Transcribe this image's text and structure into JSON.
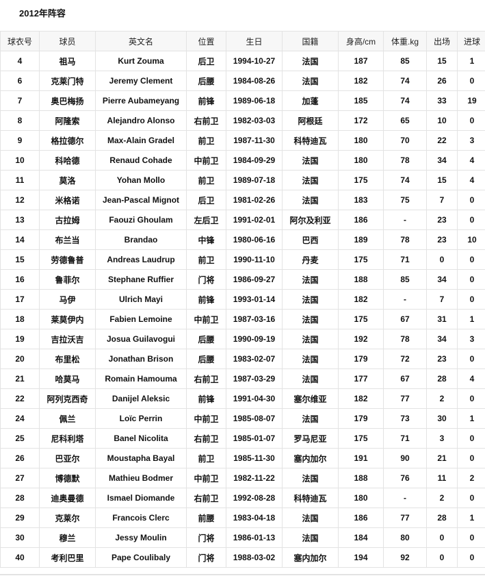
{
  "title": "2012年阵容",
  "columns": [
    "球衣号",
    "球员",
    "英文名",
    "位置",
    "生日",
    "国籍",
    "身高/cm",
    "体重.kg",
    "出场",
    "进球"
  ],
  "rows": [
    [
      "4",
      "祖马",
      "Kurt Zouma",
      "后卫",
      "1994-10-27",
      "法国",
      "187",
      "85",
      "15",
      "1"
    ],
    [
      "6",
      "克莱门特",
      "Jeremy Clement",
      "后腰",
      "1984-08-26",
      "法国",
      "182",
      "74",
      "26",
      "0"
    ],
    [
      "7",
      "奥巴梅扬",
      "Pierre Aubameyang",
      "前锋",
      "1989-06-18",
      "加蓬",
      "185",
      "74",
      "33",
      "19"
    ],
    [
      "8",
      "阿隆索",
      "Alejandro Alonso",
      "右前卫",
      "1982-03-03",
      "阿根廷",
      "172",
      "65",
      "10",
      "0"
    ],
    [
      "9",
      "格拉德尔",
      "Max-Alain Gradel",
      "前卫",
      "1987-11-30",
      "科特迪瓦",
      "180",
      "70",
      "22",
      "3"
    ],
    [
      "10",
      "科哈德",
      "Renaud Cohade",
      "中前卫",
      "1984-09-29",
      "法国",
      "180",
      "78",
      "34",
      "4"
    ],
    [
      "11",
      "莫洛",
      "Yohan Mollo",
      "前卫",
      "1989-07-18",
      "法国",
      "175",
      "74",
      "15",
      "4"
    ],
    [
      "12",
      "米格诺",
      "Jean-Pascal Mignot",
      "后卫",
      "1981-02-26",
      "法国",
      "183",
      "75",
      "7",
      "0"
    ],
    [
      "13",
      "古拉姆",
      "Faouzi Ghoulam",
      "左后卫",
      "1991-02-01",
      "阿尔及利亚",
      "186",
      "-",
      "23",
      "0"
    ],
    [
      "14",
      "布兰当",
      "Brandao",
      "中锋",
      "1980-06-16",
      "巴西",
      "189",
      "78",
      "23",
      "10"
    ],
    [
      "15",
      "劳德鲁普",
      "Andreas Laudrup",
      "前卫",
      "1990-11-10",
      "丹麦",
      "175",
      "71",
      "0",
      "0"
    ],
    [
      "16",
      "鲁菲尔",
      "Stephane Ruffier",
      "门将",
      "1986-09-27",
      "法国",
      "188",
      "85",
      "34",
      "0"
    ],
    [
      "17",
      "马伊",
      "Ulrich Mayi",
      "前锋",
      "1993-01-14",
      "法国",
      "182",
      "-",
      "7",
      "0"
    ],
    [
      "18",
      "莱莫伊内",
      "Fabien Lemoine",
      "中前卫",
      "1987-03-16",
      "法国",
      "175",
      "67",
      "31",
      "1"
    ],
    [
      "19",
      "吉拉沃吉",
      "Josua Guilavogui",
      "后腰",
      "1990-09-19",
      "法国",
      "192",
      "78",
      "34",
      "3"
    ],
    [
      "20",
      "布里松",
      "Jonathan Brison",
      "后腰",
      "1983-02-07",
      "法国",
      "179",
      "72",
      "23",
      "0"
    ],
    [
      "21",
      "哈莫马",
      "Romain Hamouma",
      "右前卫",
      "1987-03-29",
      "法国",
      "177",
      "67",
      "28",
      "4"
    ],
    [
      "22",
      "阿列克西奇",
      "Danijel Aleksic",
      "前锋",
      "1991-04-30",
      "塞尔维亚",
      "182",
      "77",
      "2",
      "0"
    ],
    [
      "24",
      "佩兰",
      "Loïc Perrin",
      "中前卫",
      "1985-08-07",
      "法国",
      "179",
      "73",
      "30",
      "1"
    ],
    [
      "25",
      "尼科利塔",
      "Banel Nicolita",
      "右前卫",
      "1985-01-07",
      "罗马尼亚",
      "175",
      "71",
      "3",
      "0"
    ],
    [
      "26",
      "巴亚尔",
      "Moustapha Bayal",
      "前卫",
      "1985-11-30",
      "塞内加尔",
      "191",
      "90",
      "21",
      "0"
    ],
    [
      "27",
      "博德默",
      "Mathieu Bodmer",
      "中前卫",
      "1982-11-22",
      "法国",
      "188",
      "76",
      "11",
      "2"
    ],
    [
      "28",
      "迪奥曼德",
      "Ismael Diomande",
      "右前卫",
      "1992-08-28",
      "科特迪瓦",
      "180",
      "-",
      "2",
      "0"
    ],
    [
      "29",
      "克莱尔",
      "Francois Clerc",
      "前腰",
      "1983-04-18",
      "法国",
      "186",
      "77",
      "28",
      "1"
    ],
    [
      "30",
      "穆兰",
      "Jessy Moulin",
      "门将",
      "1986-01-13",
      "法国",
      "184",
      "80",
      "0",
      "0"
    ],
    [
      "40",
      "考利巴里",
      "Pape Coulibaly",
      "门将",
      "1988-03-02",
      "塞内加尔",
      "194",
      "92",
      "0",
      "0"
    ]
  ]
}
